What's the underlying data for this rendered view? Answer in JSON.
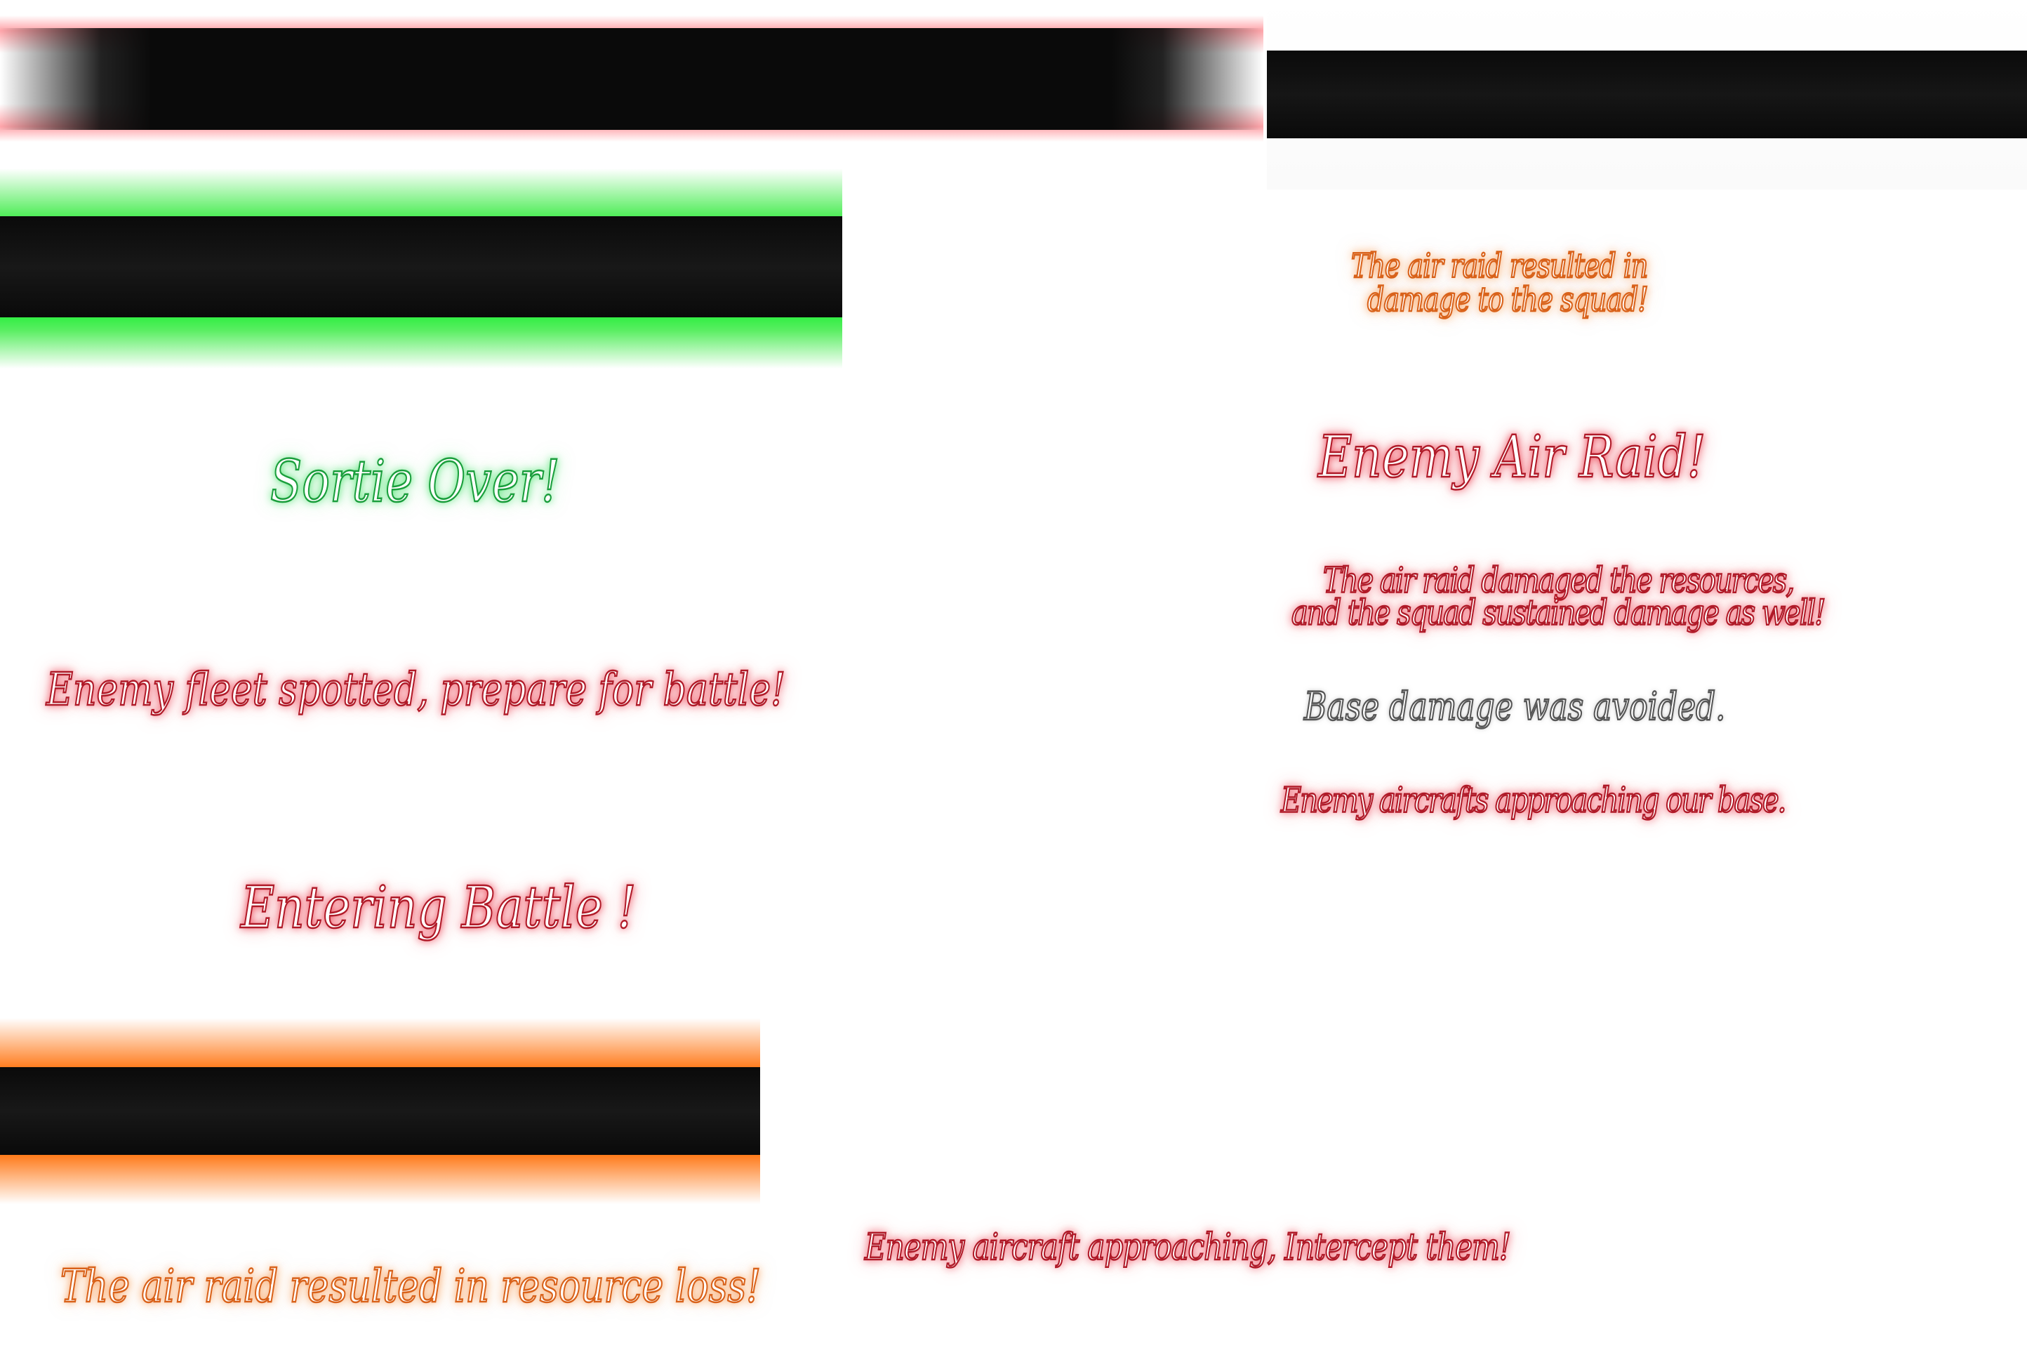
{
  "banners": {
    "red_glow": "#ff4a55",
    "green_glow": "#33ee44",
    "orange_glow": "#ff7a1a",
    "bar_fill": "#0a0a0a"
  },
  "texts": {
    "sortie_over": "Sortie Over!",
    "enemy_fleet_spotted": "Enemy fleet spotted, prepare for battle!",
    "entering_battle": "Entering Battle !",
    "resource_loss": "The air raid resulted in resource loss!",
    "squad_damage_line1": "The air raid resulted in",
    "squad_damage_line2": "damage to the squad!",
    "enemy_air_raid": "Enemy Air Raid!",
    "both_damage_line1": "The air raid damaged the resources,",
    "both_damage_line2": "and the squad sustained damage as well!",
    "base_damage_avoided": "Base damage was avoided.",
    "aircrafts_approaching_base": "Enemy aircrafts approaching our base.",
    "intercept_them": "Enemy aircraft approaching, Intercept them!"
  }
}
